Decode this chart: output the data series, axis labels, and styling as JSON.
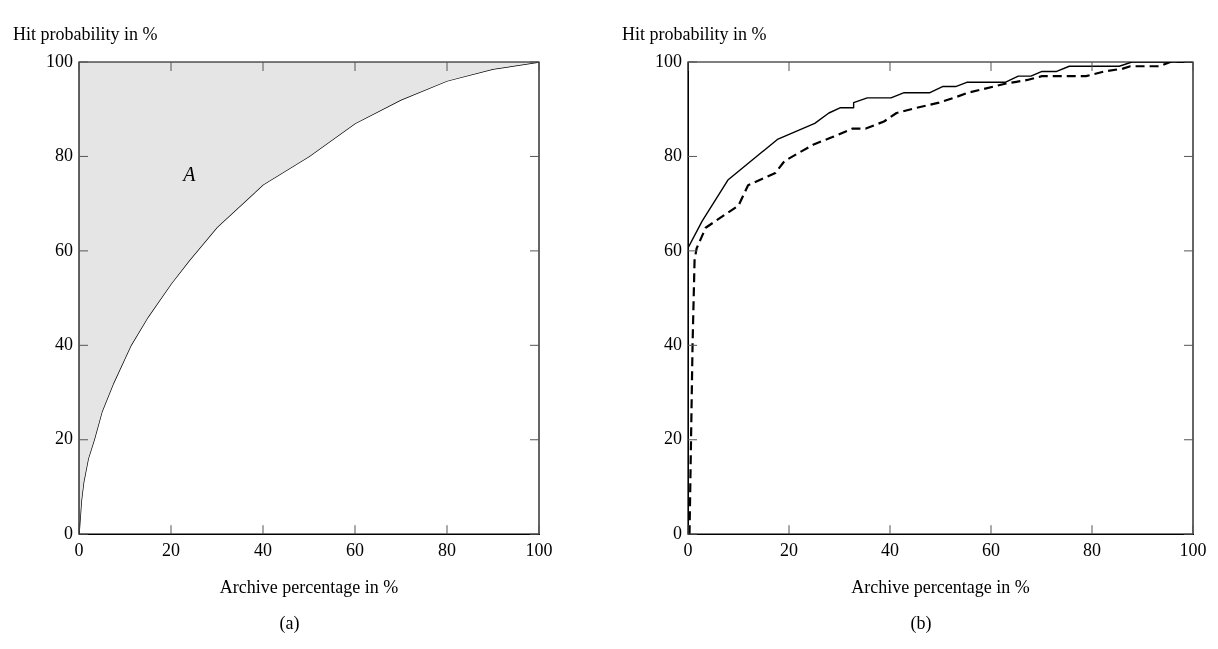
{
  "chart_data": [
    {
      "type": "line",
      "title": "(a)",
      "xlabel": "Archive percentage in %",
      "ylabel": "Hit probability in %",
      "xlim": [
        0,
        100
      ],
      "ylim": [
        0,
        100
      ],
      "xticks": [
        0,
        20,
        40,
        60,
        80,
        100
      ],
      "yticks": [
        0,
        20,
        40,
        60,
        80,
        100
      ],
      "grid": false,
      "legend": false,
      "annotations": [
        "A"
      ],
      "series": [
        {
          "color": "#000000",
          "line_style": "solid",
          "x": [
            0,
            0.5,
            1,
            2,
            3.3,
            5,
            7.5,
            11.3,
            15,
            20,
            24,
            30,
            40,
            50,
            60,
            70,
            80,
            90,
            100
          ],
          "values": [
            0,
            7,
            11,
            16,
            20,
            26,
            32,
            40,
            46,
            53,
            58,
            65,
            74,
            80,
            87,
            92,
            96,
            98.5,
            100
          ],
          "lower": [
            0,
            7,
            11,
            16,
            20,
            26,
            32,
            40,
            46,
            53,
            58,
            65,
            74,
            80,
            87,
            92,
            96,
            98.5,
            100
          ],
          "upper": [
            100,
            100,
            100,
            100,
            100,
            100,
            100,
            100,
            100,
            100,
            100,
            100,
            100,
            100,
            100,
            100,
            100,
            100,
            100
          ]
        }
      ]
    },
    {
      "type": "line",
      "title": "(b)",
      "xlabel": "Archive percentage in %",
      "ylabel": "Hit probability in %",
      "xlim": [
        0,
        100
      ],
      "ylim": [
        0,
        100
      ],
      "xticks": [
        0,
        20,
        40,
        60,
        80,
        100
      ],
      "yticks": [
        0,
        20,
        40,
        60,
        80,
        100
      ],
      "grid": false,
      "legend": false,
      "series": [
        {
          "color": "#000000",
          "line_style": "solid",
          "x": [
            0,
            0,
            2.8,
            7.9,
            17.7,
            25.1,
            27.9,
            30.1,
            32.8,
            32.8,
            35.5,
            40.2,
            42.8,
            47.9,
            50.4,
            53,
            55.2,
            62.8,
            65.4,
            67.9,
            70.1,
            73,
            75.5,
            85.4,
            87.9,
            100
          ],
          "values": [
            0,
            60.6,
            66.3,
            75,
            83.6,
            87,
            89.2,
            90.3,
            90.3,
            91.4,
            92.4,
            92.4,
            93.5,
            93.5,
            94.8,
            94.8,
            95.7,
            95.7,
            97,
            97,
            98,
            98,
            99.1,
            99.1,
            100,
            100
          ]
        },
        {
          "color": "#000000",
          "line_style": "dashed",
          "x": [
            0.3,
            0.6,
            0.9,
            1.3,
            1.7,
            3.5,
            7.5,
            10,
            11.9,
            17.3,
            19.1,
            22,
            25,
            28.6,
            32.6,
            35.2,
            38.8,
            41.3,
            45.3,
            49.7,
            52.6,
            55.5,
            62.8,
            67.2,
            70.1,
            78.8,
            82.5,
            86.1,
            87.6,
            93.4,
            95.5,
            100
          ],
          "values": [
            0,
            20,
            40,
            58,
            60.5,
            64.9,
            67.8,
            69.6,
            73.9,
            76.5,
            79,
            80.8,
            82.6,
            84.1,
            85.9,
            85.9,
            87.4,
            89.2,
            90.3,
            91.4,
            92.4,
            93.5,
            95.4,
            96.2,
            97,
            97,
            98,
            98.6,
            99.1,
            99.1,
            100,
            100
          ]
        }
      ]
    }
  ]
}
